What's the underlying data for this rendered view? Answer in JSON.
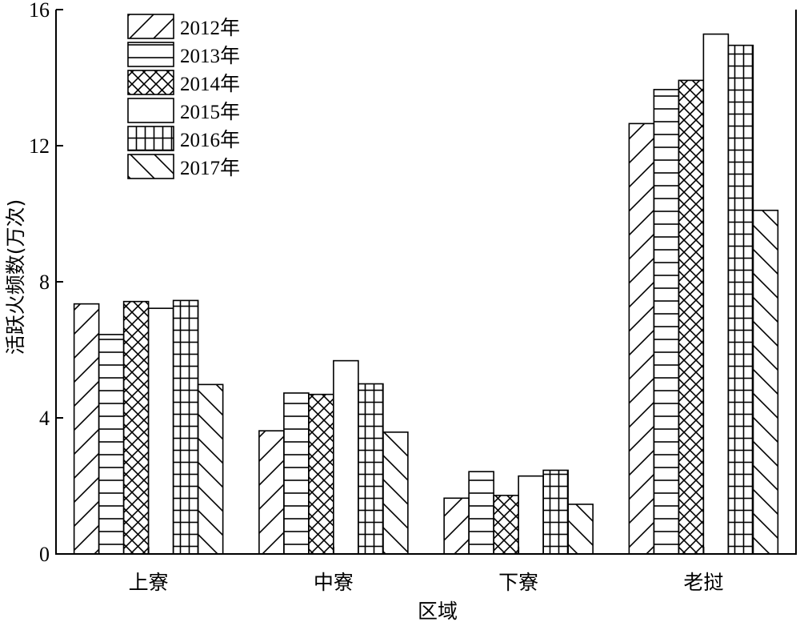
{
  "chart_data": {
    "type": "bar",
    "categories": [
      "上寮",
      "中寮",
      "下寮",
      "老挝"
    ],
    "series": [
      {
        "name": "2012年",
        "pattern": "diagonal-up",
        "values": [
          7.35,
          3.62,
          1.64,
          12.65
        ]
      },
      {
        "name": "2013年",
        "pattern": "horizontal",
        "values": [
          6.45,
          4.73,
          2.42,
          13.65
        ]
      },
      {
        "name": "2014年",
        "pattern": "crosshatch-diagonal",
        "values": [
          7.42,
          4.69,
          1.72,
          13.92
        ]
      },
      {
        "name": "2015年",
        "pattern": "blank",
        "values": [
          7.22,
          5.68,
          2.29,
          15.28
        ]
      },
      {
        "name": "2016年",
        "pattern": "grid",
        "values": [
          7.45,
          5.0,
          2.46,
          14.95
        ]
      },
      {
        "name": "2017年",
        "pattern": "diagonal-down",
        "values": [
          4.98,
          3.58,
          1.46,
          10.1
        ]
      }
    ],
    "xlabel": "区域",
    "ylabel": "活跃火频数(万次)",
    "ylim": [
      0,
      16
    ],
    "yticks": [
      0,
      4,
      8,
      12,
      16
    ],
    "ytick_labels": [
      "0",
      "4",
      "8",
      "12",
      "16"
    ],
    "grid": false,
    "legend_position": "top-left",
    "colors": {
      "stroke": "#000000",
      "fill": "#ffffff"
    }
  }
}
